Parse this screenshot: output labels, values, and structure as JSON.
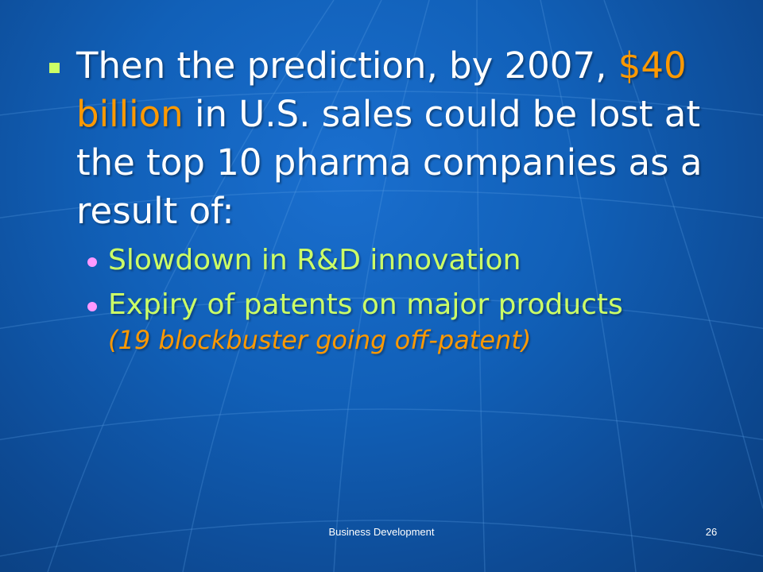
{
  "slide": {
    "main_bullet": {
      "text_before": "Then the prediction, by 2007, ",
      "highlight": "$40 billion",
      "text_after": " in U.S. sales could be lost at the top 10 pharma companies as a result of:"
    },
    "sub_bullets": [
      {
        "text": "Slowdown in R&D innovation"
      },
      {
        "text": "Expiry of patents on major products",
        "note": "(19 blockbuster going off-patent)"
      }
    ],
    "footer": "Business Development",
    "page_number": "26"
  },
  "colors": {
    "background": "#1160b8",
    "main_text": "#ffffff",
    "highlight": "#ff9900",
    "sub_text": "#ccff66",
    "main_bullet_marker": "#ccff66",
    "sub_bullet_marker": "#ff99ff"
  }
}
